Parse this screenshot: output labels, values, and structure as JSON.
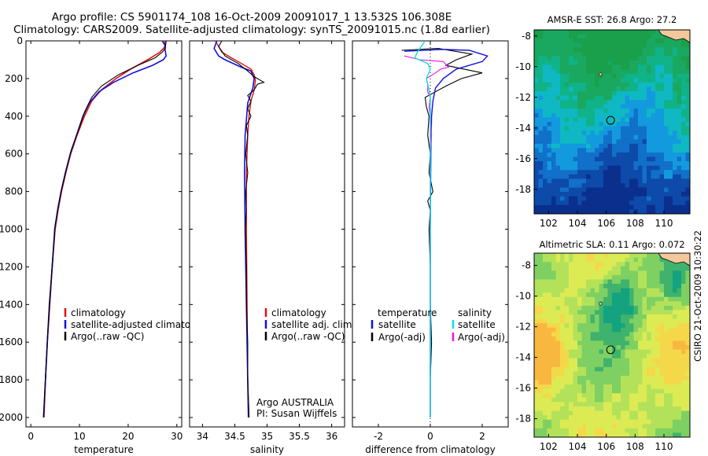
{
  "titles": {
    "line1": "Argo profile: CS 5901174_108 16-Oct-2009 20091017_1 13.532S 106.308E",
    "line2": "Climatology: CARS2009. Satellite-adjusted climatology: synTS_20091015.nc (1.8d earlier)"
  },
  "colors": {
    "climatology": "#dd1111",
    "satellite": "#1111dd",
    "argo": "#000000",
    "sal_satellite": "#11dddd",
    "sal_argo": "#ee11ee"
  },
  "chart_data": [
    {
      "type": "line",
      "xlabel": "temperature",
      "xlim": [
        -1,
        31
      ],
      "ylim": [
        2050,
        0
      ],
      "xticks": [
        0,
        10,
        20,
        30
      ],
      "yticks": [
        0,
        200,
        400,
        600,
        800,
        1000,
        1200,
        1400,
        1600,
        1800,
        2000
      ],
      "legend": {
        "position": "lower-right",
        "entries": [
          "climatology",
          "satellite-adjusted climatology",
          "Argo(..raw -QC)"
        ]
      },
      "series": [
        {
          "name": "climatology",
          "color": "#dd1111",
          "width": 1.6,
          "points": [
            [
              27.5,
              0
            ],
            [
              27.6,
              30
            ],
            [
              26.5,
              60
            ],
            [
              24,
              100
            ],
            [
              20.5,
              150
            ],
            [
              17.5,
              200
            ],
            [
              14.5,
              260
            ],
            [
              12.5,
              320
            ],
            [
              11,
              400
            ],
            [
              9.5,
              500
            ],
            [
              8.2,
              600
            ],
            [
              7.2,
              700
            ],
            [
              6.3,
              800
            ],
            [
              5.6,
              900
            ],
            [
              5,
              1000
            ],
            [
              4.4,
              1200
            ],
            [
              3.9,
              1400
            ],
            [
              3.4,
              1600
            ],
            [
              3,
              1800
            ],
            [
              2.7,
              2000
            ]
          ]
        },
        {
          "name": "satellite-adjusted climatology",
          "color": "#1111dd",
          "width": 1.6,
          "points": [
            [
              27,
              0
            ],
            [
              27.5,
              20
            ],
            [
              27.6,
              50
            ],
            [
              27.8,
              80
            ],
            [
              27.2,
              100
            ],
            [
              25,
              130
            ],
            [
              21,
              170
            ],
            [
              17,
              220
            ],
            [
              14,
              270
            ],
            [
              12,
              330
            ],
            [
              10.7,
              400
            ],
            [
              9.4,
              500
            ],
            [
              8.1,
              600
            ],
            [
              7.1,
              700
            ],
            [
              6.2,
              800
            ],
            [
              5.5,
              900
            ],
            [
              4.9,
              1000
            ],
            [
              4.4,
              1200
            ],
            [
              3.8,
              1400
            ],
            [
              3.4,
              1600
            ],
            [
              3,
              1800
            ],
            [
              2.6,
              2000
            ]
          ]
        },
        {
          "name": "Argo(..raw -QC)",
          "color": "#000000",
          "width": 1.1,
          "points": [
            [
              27.8,
              0
            ],
            [
              27.6,
              40
            ],
            [
              27,
              60
            ],
            [
              25.5,
              90
            ],
            [
              22,
              130
            ],
            [
              18,
              180
            ],
            [
              14.5,
              240
            ],
            [
              12.5,
              300
            ],
            [
              11,
              380
            ],
            [
              9.7,
              480
            ],
            [
              8.3,
              580
            ],
            [
              7.3,
              680
            ],
            [
              6.4,
              780
            ],
            [
              5.6,
              880
            ],
            [
              5,
              980
            ],
            [
              4.4,
              1180
            ],
            [
              3.9,
              1380
            ],
            [
              3.4,
              1580
            ],
            [
              3,
              1780
            ],
            [
              2.6,
              2000
            ]
          ]
        }
      ]
    },
    {
      "type": "line",
      "xlabel": "salinity",
      "xlim": [
        33.8,
        36.2
      ],
      "ylim": [
        2050,
        0
      ],
      "xticks": [
        34,
        34.5,
        35,
        35.5,
        36
      ],
      "legend": {
        "position": "lower-right",
        "entries": [
          "climatology",
          "satellite adj. clim.",
          "Argo(..raw -QC)"
        ]
      },
      "annotation": [
        "Argo AUSTRALIA",
        "PI: Susan Wijffels"
      ],
      "series": [
        {
          "name": "climatology",
          "color": "#dd1111",
          "width": 1.4,
          "points": [
            [
              34.2,
              0
            ],
            [
              34.25,
              30
            ],
            [
              34.3,
              60
            ],
            [
              34.45,
              90
            ],
            [
              34.6,
              120
            ],
            [
              34.75,
              150
            ],
            [
              34.8,
              180
            ],
            [
              34.82,
              210
            ],
            [
              34.8,
              260
            ],
            [
              34.75,
              320
            ],
            [
              34.72,
              400
            ],
            [
              34.7,
              500
            ],
            [
              34.68,
              700
            ],
            [
              34.68,
              1000
            ],
            [
              34.69,
              1400
            ],
            [
              34.7,
              1800
            ],
            [
              34.72,
              2000
            ]
          ]
        },
        {
          "name": "satellite adj. clim.",
          "color": "#1111dd",
          "width": 1.6,
          "points": [
            [
              34.22,
              0
            ],
            [
              34.18,
              40
            ],
            [
              34.25,
              80
            ],
            [
              34.35,
              100
            ],
            [
              34.6,
              140
            ],
            [
              34.75,
              160
            ],
            [
              34.8,
              200
            ],
            [
              34.78,
              250
            ],
            [
              34.7,
              330
            ],
            [
              34.68,
              420
            ],
            [
              34.66,
              500
            ],
            [
              34.65,
              700
            ],
            [
              34.66,
              1000
            ],
            [
              34.68,
              1400
            ],
            [
              34.7,
              1800
            ],
            [
              34.71,
              2000
            ]
          ]
        },
        {
          "name": "Argo(..raw -QC)",
          "color": "#000000",
          "width": 1.1,
          "points": [
            [
              34.3,
              0
            ],
            [
              34.25,
              30
            ],
            [
              34.35,
              80
            ],
            [
              34.55,
              120
            ],
            [
              34.7,
              160
            ],
            [
              34.8,
              190
            ],
            [
              34.95,
              220
            ],
            [
              34.85,
              230
            ],
            [
              34.8,
              260
            ],
            [
              34.7,
              290
            ],
            [
              34.75,
              320
            ],
            [
              34.7,
              360
            ],
            [
              34.75,
              400
            ],
            [
              34.68,
              450
            ],
            [
              34.7,
              500
            ],
            [
              34.67,
              600
            ],
            [
              34.7,
              700
            ],
            [
              34.67,
              800
            ],
            [
              34.68,
              900
            ],
            [
              34.66,
              1000
            ],
            [
              34.68,
              1200
            ],
            [
              34.68,
              1400
            ],
            [
              34.7,
              1600
            ],
            [
              34.7,
              1800
            ],
            [
              34.72,
              2000
            ]
          ]
        }
      ]
    },
    {
      "type": "line",
      "xlabel": "difference from climatology",
      "xlim": [
        -3,
        3
      ],
      "ylim": [
        2050,
        0
      ],
      "xticks": [
        -2,
        0,
        2
      ],
      "zero_line": true,
      "legend": {
        "position": "lower-right",
        "left_header": "temperature",
        "left_entries": [
          "satellite",
          "Argo(-adj)"
        ],
        "right_header": "salinity",
        "right_entries": [
          "satellite",
          "Argo(-adj)"
        ]
      },
      "series": [
        {
          "name": "Argo(-adj)",
          "color": "#000000",
          "width": 1.1,
          "points": [
            [
              -1.1,
              50
            ],
            [
              0.3,
              40
            ],
            [
              1.6,
              70
            ],
            [
              1,
              100
            ],
            [
              0.6,
              130
            ],
            [
              1.3,
              150
            ],
            [
              2,
              170
            ],
            [
              1.2,
              200
            ],
            [
              0.6,
              240
            ],
            [
              0.2,
              270
            ],
            [
              -0.2,
              300
            ],
            [
              -0.15,
              350
            ],
            [
              -0.05,
              400
            ],
            [
              -0.1,
              500
            ],
            [
              0,
              600
            ],
            [
              -0.05,
              700
            ],
            [
              0.1,
              800
            ],
            [
              -0.1,
              850
            ],
            [
              0,
              900
            ],
            [
              -0.05,
              1000
            ],
            [
              0,
              1200
            ],
            [
              0,
              1400
            ],
            [
              0.05,
              1600
            ],
            [
              0,
              1800
            ],
            [
              0,
              2000
            ]
          ]
        },
        {
          "name": "satellite",
          "color": "#1111dd",
          "width": 1.4,
          "points": [
            [
              -1,
              55
            ],
            [
              0.5,
              45
            ],
            [
              1.5,
              50
            ],
            [
              2.2,
              80
            ],
            [
              2,
              110
            ],
            [
              1,
              150
            ],
            [
              0.5,
              200
            ],
            [
              0.2,
              250
            ],
            [
              0.1,
              320
            ],
            [
              0.05,
              400
            ],
            [
              0.02,
              600
            ],
            [
              0,
              1000
            ],
            [
              0,
              2000
            ]
          ]
        },
        {
          "name": "Argo(-adj) salinity",
          "color": "#ee11ee",
          "width": 1.1,
          "points": [
            [
              -1,
              80
            ],
            [
              -0.4,
              100
            ],
            [
              0.5,
              110
            ],
            [
              0.7,
              140
            ],
            [
              0.4,
              150
            ],
            [
              0.2,
              170
            ],
            [
              -0.15,
              200
            ],
            [
              -0.1,
              230
            ],
            [
              -0.1,
              270
            ],
            [
              0,
              300
            ],
            [
              -0.05,
              350
            ],
            [
              0,
              400
            ],
            [
              0.05,
              500
            ],
            [
              0,
              600
            ],
            [
              0,
              2000
            ]
          ]
        },
        {
          "name": "satellite salinity",
          "color": "#11dddd",
          "width": 1.4,
          "points": [
            [
              -0.2,
              0
            ],
            [
              -0.5,
              60
            ],
            [
              -0.6,
              90
            ],
            [
              -0.1,
              120
            ],
            [
              0,
              150
            ],
            [
              -0.15,
              200
            ],
            [
              -0.05,
              260
            ],
            [
              0,
              300
            ],
            [
              0,
              2000
            ]
          ]
        }
      ]
    }
  ],
  "maps": [
    {
      "title": "AMSR-E SST: 26.8  Argo: 27.2",
      "lon_range": [
        101,
        111.8
      ],
      "lat_range": [
        -19.6,
        -7.6
      ],
      "xticks": [
        102,
        104,
        106,
        108,
        110
      ],
      "yticks": [
        -8,
        -10,
        -12,
        -14,
        -16,
        -18
      ],
      "marker": [
        106.3,
        -13.5
      ],
      "colors": [
        "#1a9f4a",
        "#1aa860",
        "#10b388",
        "#0fb8c3",
        "#139ade",
        "#1170c9",
        "#0d4aa9",
        "#0a2f8d"
      ]
    },
    {
      "title": "Altimetric SLA: 0.11  Argo: 0.072",
      "lon_range": [
        101,
        111.8
      ],
      "lat_range": [
        -19.2,
        -7.2
      ],
      "xticks": [
        102,
        104,
        106,
        108,
        110
      ],
      "yticks": [
        -8,
        -10,
        -12,
        -14,
        -16,
        -18
      ],
      "marker": [
        106.3,
        -13.5
      ],
      "colors": [
        "#f8b840",
        "#f4d84a",
        "#dceb54",
        "#b3e25a",
        "#7fd062",
        "#3fb36d",
        "#14a37f"
      ]
    }
  ],
  "stamp": "CSIRO 21-Oct-2009 10:30:22"
}
